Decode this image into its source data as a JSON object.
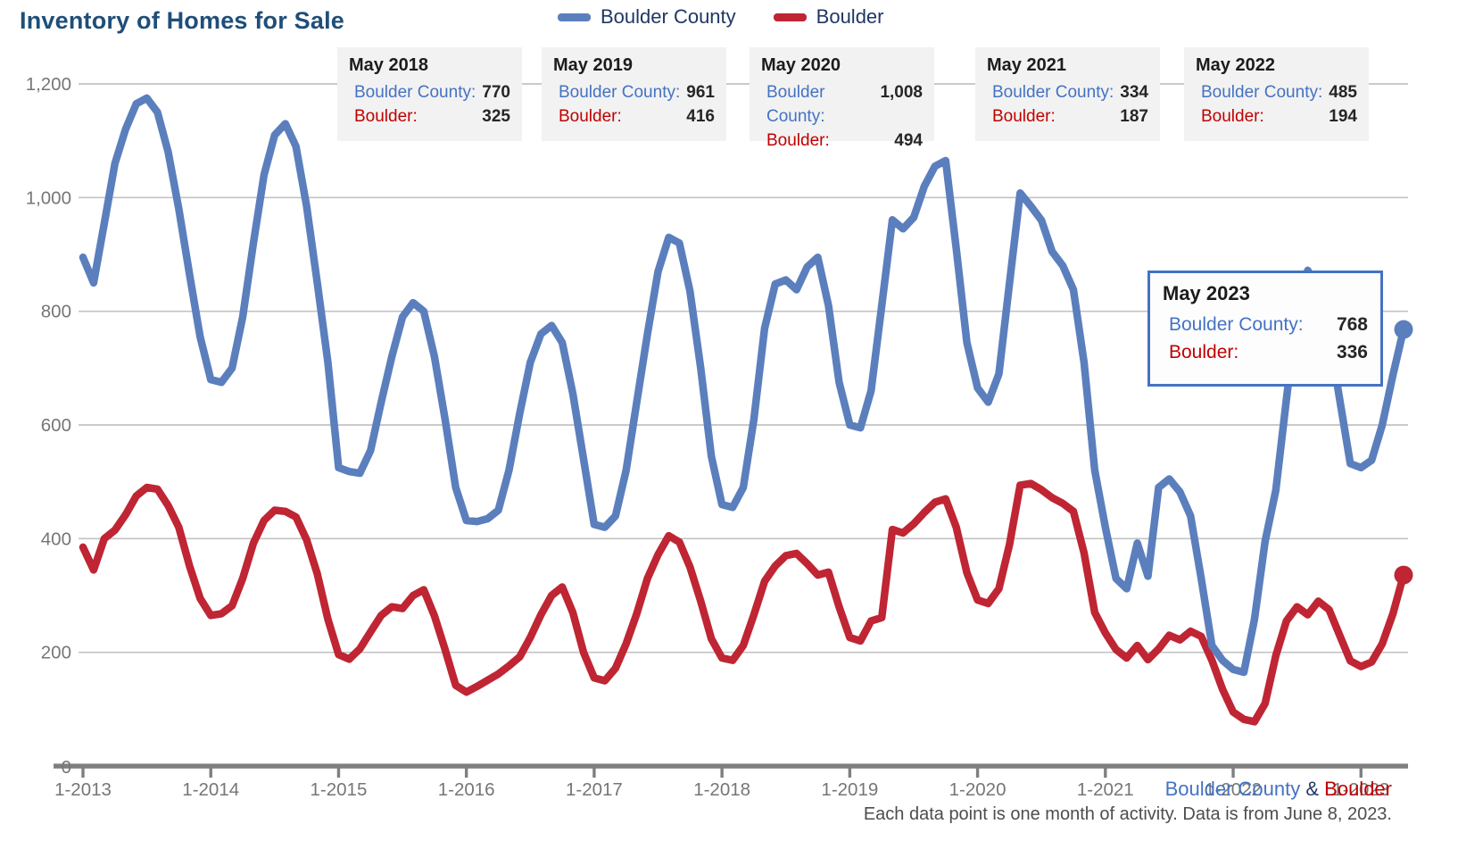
{
  "header": {
    "title": "Inventory of Homes for Sale"
  },
  "legend": {
    "items": [
      {
        "label": "Boulder County",
        "color": "#5b7fbd"
      },
      {
        "label": "Boulder",
        "color": "#bf2533"
      }
    ]
  },
  "callouts": [
    {
      "title": "May 2018",
      "county_label": "Boulder County:",
      "county_value": "770",
      "city_label": "Boulder:",
      "city_value": "325"
    },
    {
      "title": "May 2019",
      "county_label": "Boulder County:",
      "county_value": "961",
      "city_label": "Boulder:",
      "city_value": "416"
    },
    {
      "title": "May 2020",
      "county_label": "Boulder County:",
      "county_value": "1,008",
      "city_label": "Boulder:",
      "city_value": "494"
    },
    {
      "title": "May 2021",
      "county_label": "Boulder County:",
      "county_value": "334",
      "city_label": "Boulder:",
      "city_value": "187"
    },
    {
      "title": "May 2022",
      "county_label": "Boulder County:",
      "county_value": "485",
      "city_label": "Boulder:",
      "city_value": "194"
    }
  ],
  "tooltip": {
    "title": "May 2023",
    "county_label": "Boulder County:",
    "county_value": "768",
    "city_label": "Boulder:",
    "city_value": "336"
  },
  "footer": {
    "series_county": "Boulder County",
    "series_amp": " & ",
    "series_city": "Boulder",
    "caption": "Each data point is one month of activity. Data is from June 8, 2023."
  },
  "chart_data": {
    "type": "line",
    "title": "Inventory of Homes for Sale",
    "x_unit": "month",
    "x_start": "2013-01",
    "x_end": "2023-05",
    "x_tick_labels": [
      "1-2013",
      "1-2014",
      "1-2015",
      "1-2016",
      "1-2017",
      "1-2018",
      "1-2019",
      "1-2020",
      "1-2021",
      "1-2022",
      "1-2023"
    ],
    "y_ticks": [
      0,
      200,
      400,
      600,
      800,
      1000,
      1200
    ],
    "y_tick_labels": [
      "0",
      "200",
      "400",
      "600",
      "800",
      "1,000",
      "1,200"
    ],
    "ylim": [
      0,
      1200
    ],
    "grid": "horizontal",
    "legend_position": "top",
    "annotated_points": [
      {
        "label": "May 2018",
        "boulder_county": 770,
        "boulder": 325
      },
      {
        "label": "May 2019",
        "boulder_county": 961,
        "boulder": 416
      },
      {
        "label": "May 2020",
        "boulder_county": 1008,
        "boulder": 494
      },
      {
        "label": "May 2021",
        "boulder_county": 334,
        "boulder": 187
      },
      {
        "label": "May 2022",
        "boulder_county": 485,
        "boulder": 194
      },
      {
        "label": "May 2023",
        "boulder_county": 768,
        "boulder": 336
      }
    ],
    "series": [
      {
        "name": "Boulder County",
        "color": "#5b7fbd",
        "values": [
          895,
          850,
          955,
          1060,
          1120,
          1165,
          1175,
          1150,
          1080,
          980,
          865,
          755,
          680,
          675,
          700,
          790,
          920,
          1040,
          1110,
          1130,
          1090,
          985,
          850,
          710,
          525,
          518,
          515,
          555,
          640,
          720,
          790,
          815,
          800,
          720,
          610,
          490,
          432,
          430,
          435,
          450,
          520,
          620,
          710,
          760,
          775,
          745,
          655,
          540,
          425,
          420,
          440,
          520,
          640,
          760,
          870,
          930,
          920,
          835,
          700,
          545,
          460,
          455,
          490,
          610,
          770,
          848,
          855,
          838,
          878,
          895,
          810,
          675,
          600,
          595,
          660,
          810,
          961,
          945,
          965,
          1020,
          1055,
          1065,
          910,
          745,
          665,
          640,
          690,
          850,
          1008,
          985,
          960,
          905,
          880,
          838,
          710,
          520,
          420,
          330,
          312,
          392,
          334,
          490,
          505,
          482,
          440,
          330,
          212,
          186,
          170,
          165,
          258,
          395,
          485,
          645,
          800,
          872,
          840,
          758,
          645,
          532,
          525,
          538,
          600,
          688,
          768
        ]
      },
      {
        "name": "Boulder",
        "color": "#bf2533",
        "values": [
          385,
          345,
          400,
          415,
          442,
          475,
          490,
          487,
          458,
          420,
          352,
          295,
          265,
          268,
          282,
          330,
          392,
          432,
          450,
          448,
          438,
          398,
          338,
          258,
          196,
          188,
          206,
          236,
          265,
          280,
          277,
          300,
          310,
          264,
          205,
          142,
          130,
          140,
          151,
          162,
          176,
          192,
          226,
          266,
          300,
          315,
          270,
          200,
          155,
          150,
          172,
          215,
          268,
          330,
          372,
          405,
          394,
          350,
          290,
          224,
          190,
          186,
          212,
          266,
          325,
          352,
          370,
          374,
          356,
          336,
          341,
          280,
          226,
          220,
          255,
          261,
          416,
          410,
          426,
          446,
          464,
          470,
          420,
          340,
          292,
          286,
          312,
          390,
          494,
          497,
          486,
          472,
          462,
          448,
          375,
          270,
          234,
          205,
          190,
          212,
          187,
          206,
          230,
          222,
          237,
          228,
          186,
          135,
          95,
          82,
          78,
          110,
          194,
          255,
          280,
          266,
          290,
          275,
          230,
          185,
          175,
          183,
          215,
          268,
          336
        ]
      }
    ]
  }
}
